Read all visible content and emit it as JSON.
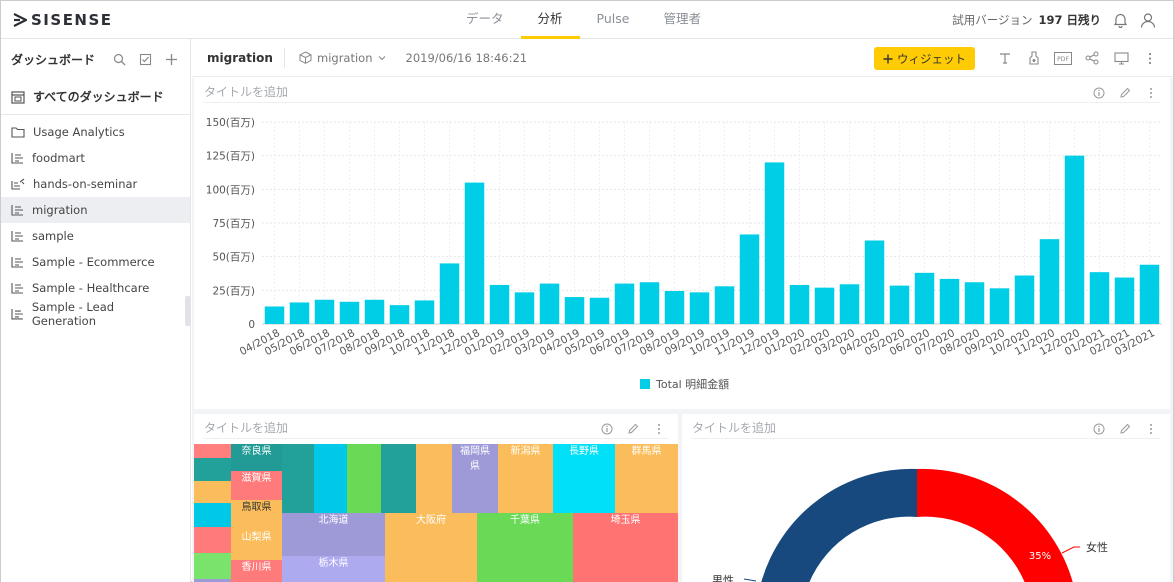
{
  "app": {
    "logo_text": "SISENSE",
    "logo_icon": "sisense-logo-icon"
  },
  "nav": {
    "tabs": [
      {
        "label": "データ",
        "active": false
      },
      {
        "label": "分析",
        "active": true
      },
      {
        "label": "Pulse",
        "active": false
      },
      {
        "label": "管理者",
        "active": false
      }
    ],
    "trial_label": "試用バージョン",
    "trial_days": "197 日残り",
    "icons": [
      "bell-icon",
      "user-icon"
    ]
  },
  "sidebar": {
    "title": "ダッシュボード",
    "tool_icons": [
      "search-icon",
      "check-edit-icon",
      "plus-icon"
    ],
    "all_dashboards": "すべてのダッシュボード",
    "items": [
      {
        "label": "Usage Analytics",
        "icon": "folder-icon",
        "selected": false
      },
      {
        "label": "foodmart",
        "icon": "dashboard-list-icon",
        "selected": false
      },
      {
        "label": "hands-on-seminar",
        "icon": "dashboard-shared-icon",
        "selected": false
      },
      {
        "label": "migration",
        "icon": "dashboard-list-icon",
        "selected": true
      },
      {
        "label": "sample",
        "icon": "dashboard-list-icon",
        "selected": false
      },
      {
        "label": "Sample - Ecommerce",
        "icon": "dashboard-list-icon",
        "selected": false
      },
      {
        "label": "Sample - Healthcare",
        "icon": "dashboard-list-icon",
        "selected": false
      },
      {
        "label": "Sample - Lead Generation",
        "icon": "dashboard-list-icon",
        "selected": false
      }
    ]
  },
  "dashboard": {
    "name": "migration",
    "datasource": "migration",
    "datasource_icon": "cube-icon",
    "date": "2019/06/16 18:46:21",
    "add_widget_label": "ウィジェット",
    "toolbar_icons": [
      "text-icon",
      "filter-funnel-icon",
      "pdf-icon",
      "share-icon",
      "monitor-icon",
      "more-vertical-icon"
    ]
  },
  "widgets": {
    "placeholder_title": "タイトルを追加",
    "tool_icons": [
      "info-icon",
      "pencil-icon",
      "more-vertical-icon"
    ]
  },
  "colors": {
    "accent": "#ffcb05",
    "bar": "#00cee6",
    "pie_blue": "#17497f",
    "pie_red": "#ff0000"
  },
  "chart_data": {
    "type": "bar",
    "categories": [
      "04/2018",
      "05/2018",
      "06/2018",
      "07/2018",
      "08/2018",
      "09/2018",
      "10/2018",
      "11/2018",
      "12/2018",
      "01/2019",
      "02/2019",
      "03/2019",
      "04/2019",
      "05/2019",
      "06/2019",
      "07/2019",
      "08/2019",
      "09/2019",
      "10/2019",
      "11/2019",
      "12/2019",
      "01/2020",
      "02/2020",
      "03/2020",
      "04/2020",
      "05/2020",
      "06/2020",
      "07/2020",
      "08/2020",
      "09/2020",
      "10/2020",
      "11/2020",
      "12/2020",
      "01/2021",
      "02/2021",
      "03/2021"
    ],
    "series": [
      {
        "name": "Total 明細金額",
        "values": [
          13,
          16,
          18,
          16.5,
          18,
          14,
          17.5,
          45,
          105,
          29,
          23.5,
          30,
          20,
          19.5,
          30,
          31,
          24.5,
          23.5,
          28,
          66.5,
          120,
          29,
          27,
          29.5,
          62,
          28.5,
          38,
          33.5,
          31,
          26.5,
          36,
          63,
          125,
          38.5,
          34.5,
          44
        ]
      }
    ],
    "yticks": [
      "0",
      "25(百万)",
      "50(百万)",
      "75(百万)",
      "100(百万)",
      "125(百万)",
      "150(百万)"
    ],
    "ylim": [
      0,
      150
    ],
    "grid": true,
    "legend_position": "bottom"
  },
  "treemap": {
    "labels": [
      "奈良県",
      "滋賀県",
      "鳥取県",
      "山梨県",
      "香川県",
      "福岡県",
      "新潟県",
      "長野県",
      "群馬県",
      "北海道",
      "大阪府",
      "千葉県",
      "埼玉県",
      "栃木県"
    ],
    "label_fukuoka_line2": "県"
  },
  "pie": {
    "label_female": "女性",
    "label_male": "男性",
    "female_pct": "35%"
  }
}
